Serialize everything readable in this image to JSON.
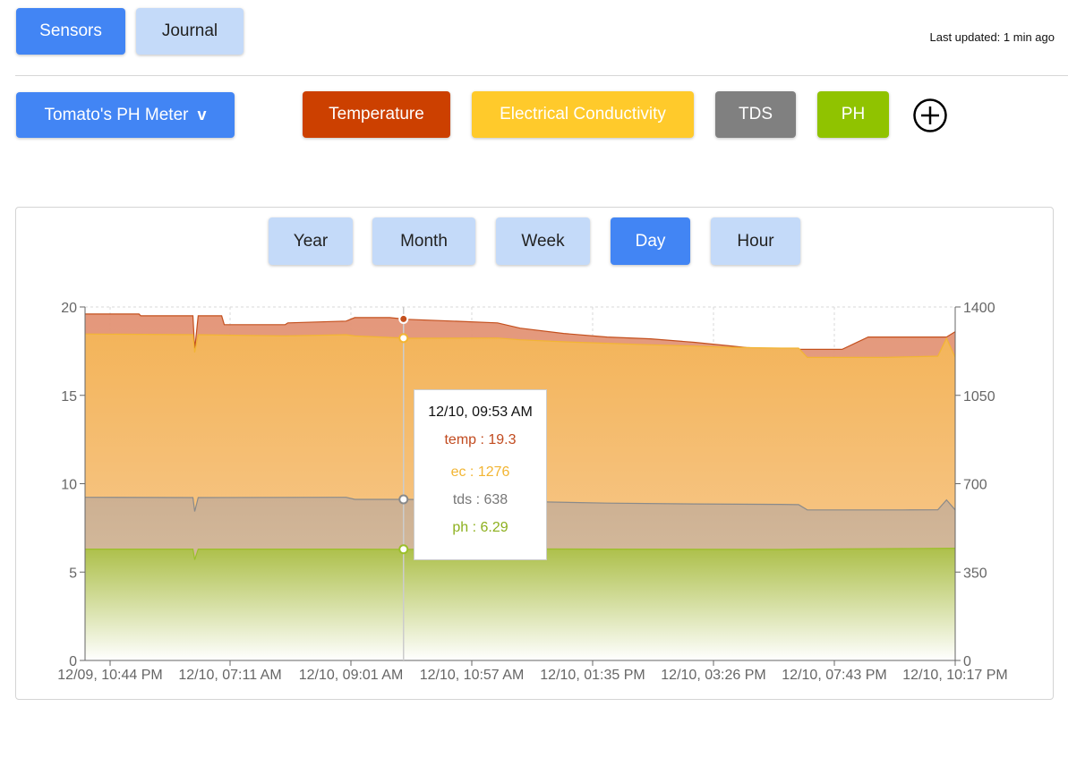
{
  "nav": {
    "sensors_label": "Sensors",
    "journal_label": "Journal",
    "last_updated": "Last updated: 1 min ago"
  },
  "device": {
    "selected": "Tomato's PH Meter",
    "chevron": "v"
  },
  "metrics": [
    {
      "key": "temp",
      "label": "Temperature",
      "color": "#cc4000"
    },
    {
      "key": "ec",
      "label": "Electrical Conductivity",
      "color": "#ffca2b"
    },
    {
      "key": "tds",
      "label": "TDS",
      "color": "#808080"
    },
    {
      "key": "ph",
      "label": "PH",
      "color": "#90c300"
    }
  ],
  "add_metric_icon": "plus-circle-icon",
  "ranges": [
    {
      "label": "Year",
      "active": false
    },
    {
      "label": "Month",
      "active": false
    },
    {
      "label": "Week",
      "active": false
    },
    {
      "label": "Day",
      "active": true
    },
    {
      "label": "Hour",
      "active": false
    }
  ],
  "tooltip": {
    "title": "12/10, 09:53 AM",
    "rows": [
      {
        "label": "temp : 19.3",
        "color": "#c14a1e"
      },
      {
        "label": "ec : 1276",
        "color": "#f2b533"
      },
      {
        "label": "tds : 638",
        "color": "#777777"
      },
      {
        "label": "ph : 6.29",
        "color": "#8db01e"
      }
    ]
  },
  "chart_data": {
    "type": "area",
    "x_tick_labels": [
      "12/09, 10:44 PM",
      "12/10, 07:11 AM",
      "12/10, 09:01 AM",
      "12/10, 10:57 AM",
      "12/10, 01:35 PM",
      "12/10, 03:26 PM",
      "12/10, 07:43 PM",
      "12/10, 10:17 PM"
    ],
    "y_left": {
      "ticks": [
        0,
        5,
        10,
        15,
        20
      ],
      "range": [
        0,
        20
      ]
    },
    "y_right": {
      "ticks": [
        0,
        350,
        700,
        1050,
        1400
      ],
      "range": [
        0,
        1400
      ]
    },
    "grid": true,
    "series": [
      {
        "name": "temp",
        "axis": "left",
        "color": "#cc4000",
        "points": [
          [
            0,
            19.6
          ],
          [
            0.062,
            19.6
          ],
          [
            0.064,
            19.5
          ],
          [
            0.124,
            19.5
          ],
          [
            0.126,
            17.6
          ],
          [
            0.13,
            19.5
          ],
          [
            0.157,
            19.5
          ],
          [
            0.16,
            19.0
          ],
          [
            0.23,
            19.0
          ],
          [
            0.233,
            19.1
          ],
          [
            0.3,
            19.2
          ],
          [
            0.31,
            19.4
          ],
          [
            0.35,
            19.4
          ],
          [
            0.37,
            19.3
          ],
          [
            0.474,
            19.1
          ],
          [
            0.5,
            18.8
          ],
          [
            0.55,
            18.5
          ],
          [
            0.6,
            18.3
          ],
          [
            0.65,
            18.2
          ],
          [
            0.7,
            18.0
          ],
          [
            0.74,
            17.8
          ],
          [
            0.76,
            17.7
          ],
          [
            0.8,
            17.6
          ],
          [
            0.87,
            17.6
          ],
          [
            0.9,
            18.3
          ],
          [
            0.95,
            18.3
          ],
          [
            0.99,
            18.3
          ],
          [
            1,
            18.6
          ]
        ]
      },
      {
        "name": "ec",
        "axis": "right",
        "color": "#ffca2b",
        "points": [
          [
            0,
            1293
          ],
          [
            0.124,
            1290
          ],
          [
            0.126,
            1220
          ],
          [
            0.13,
            1290
          ],
          [
            0.23,
            1285
          ],
          [
            0.3,
            1290
          ],
          [
            0.31,
            1285
          ],
          [
            0.37,
            1276
          ],
          [
            0.474,
            1277
          ],
          [
            0.5,
            1270
          ],
          [
            0.55,
            1262
          ],
          [
            0.6,
            1256
          ],
          [
            0.65,
            1250
          ],
          [
            0.7,
            1245
          ],
          [
            0.74,
            1240
          ],
          [
            0.8,
            1237
          ],
          [
            0.82,
            1237
          ],
          [
            0.83,
            1200
          ],
          [
            0.87,
            1200
          ],
          [
            0.92,
            1200
          ],
          [
            0.94,
            1202
          ],
          [
            0.98,
            1205
          ],
          [
            0.99,
            1276
          ],
          [
            1,
            1200
          ]
        ]
      },
      {
        "name": "tds",
        "axis": "right",
        "color": "#808080",
        "points": [
          [
            0,
            646
          ],
          [
            0.124,
            645
          ],
          [
            0.126,
            590
          ],
          [
            0.13,
            645
          ],
          [
            0.3,
            646
          ],
          [
            0.31,
            638
          ],
          [
            0.37,
            638
          ],
          [
            0.474,
            631
          ],
          [
            0.5,
            630
          ],
          [
            0.6,
            623
          ],
          [
            0.7,
            620
          ],
          [
            0.8,
            618
          ],
          [
            0.82,
            617
          ],
          [
            0.83,
            596
          ],
          [
            0.87,
            596
          ],
          [
            0.94,
            596
          ],
          [
            0.98,
            597
          ],
          [
            0.99,
            636
          ],
          [
            1,
            596
          ]
        ]
      },
      {
        "name": "ph",
        "axis": "left",
        "color": "#90c300",
        "points": [
          [
            0,
            6.3
          ],
          [
            0.124,
            6.3
          ],
          [
            0.126,
            5.7
          ],
          [
            0.13,
            6.3
          ],
          [
            0.3,
            6.3
          ],
          [
            0.37,
            6.29
          ],
          [
            0.474,
            6.31
          ],
          [
            0.6,
            6.3
          ],
          [
            0.8,
            6.28
          ],
          [
            0.83,
            6.3
          ],
          [
            0.94,
            6.33
          ],
          [
            1,
            6.35
          ]
        ]
      }
    ],
    "hover": {
      "x": 0.366
    }
  }
}
